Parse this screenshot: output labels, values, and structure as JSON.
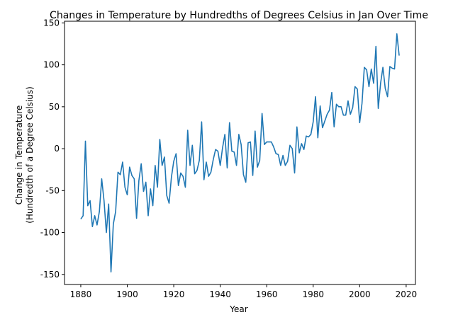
{
  "chart_data": {
    "type": "line",
    "title": "Changes in Temperature by Hundredths of Degrees Celsius in Jan Over Time",
    "xlabel": "Year",
    "ylabel_lines": [
      "Change in Temperature",
      "(Hundredth of a Degree Celsius)"
    ],
    "xlim": [
      1873,
      2024
    ],
    "ylim": [
      -162,
      152
    ],
    "x_ticks": [
      1880,
      1900,
      1920,
      1940,
      1960,
      1980,
      2000,
      2020
    ],
    "y_ticks": [
      -150,
      -100,
      -50,
      0,
      50,
      100,
      150
    ],
    "grid": false,
    "legend": "none",
    "line_color": "#1f77b4",
    "series": [
      {
        "x": [
          1880,
          1881,
          1882,
          1883,
          1884,
          1885,
          1886,
          1887,
          1888,
          1889,
          1890,
          1891,
          1892,
          1893,
          1894,
          1895,
          1896,
          1897,
          1898,
          1899,
          1900,
          1901,
          1902,
          1903,
          1904,
          1905,
          1906,
          1907,
          1908,
          1909,
          1910,
          1911,
          1912,
          1913,
          1914,
          1915,
          1916,
          1917,
          1918,
          1919,
          1920,
          1921,
          1922,
          1923,
          1924,
          1925,
          1926,
          1927,
          1928,
          1929,
          1930,
          1931,
          1932,
          1933,
          1934,
          1935,
          1936,
          1937,
          1938,
          1939,
          1940,
          1941,
          1942,
          1943,
          1944,
          1945,
          1946,
          1947,
          1948,
          1949,
          1950,
          1951,
          1952,
          1953,
          1954,
          1955,
          1956,
          1957,
          1958,
          1959,
          1960,
          1961,
          1962,
          1963,
          1964,
          1965,
          1966,
          1967,
          1968,
          1969,
          1970,
          1971,
          1972,
          1973,
          1974,
          1975,
          1976,
          1977,
          1978,
          1979,
          1980,
          1981,
          1982,
          1983,
          1984,
          1985,
          1986,
          1987,
          1988,
          1989,
          1990,
          1991,
          1992,
          1993,
          1994,
          1995,
          1996,
          1997,
          1998,
          1999,
          2000,
          2001,
          2002,
          2003,
          2004,
          2005,
          2006,
          2007,
          2008,
          2009,
          2010,
          2011,
          2012,
          2013,
          2014,
          2015,
          2016,
          2017
        ],
        "y": [
          -84,
          -80,
          9,
          -68,
          -62,
          -93,
          -80,
          -91,
          -75,
          -36,
          -62,
          -100,
          -66,
          -147,
          -90,
          -75,
          -28,
          -31,
          -16,
          -46,
          -55,
          -22,
          -32,
          -36,
          -83,
          -38,
          -18,
          -51,
          -40,
          -80,
          -48,
          -68,
          -20,
          -46,
          11,
          -20,
          -10,
          -56,
          -65,
          -34,
          -15,
          -6,
          -44,
          -29,
          -33,
          -46,
          22,
          -20,
          4,
          -30,
          -26,
          -14,
          32,
          -37,
          -16,
          -33,
          -28,
          -13,
          -1,
          -3,
          -20,
          1,
          17,
          -23,
          31,
          -3,
          -4,
          -20,
          17,
          5,
          -31,
          -40,
          7,
          8,
          -32,
          21,
          -22,
          -14,
          42,
          5,
          8,
          8,
          8,
          2,
          -6,
          -7,
          -20,
          -8,
          -20,
          -15,
          4,
          0,
          -29,
          26,
          -5,
          6,
          -1,
          15,
          14,
          17,
          32,
          62,
          13,
          51,
          25,
          33,
          41,
          46,
          67,
          26,
          53,
          50,
          50,
          40,
          40,
          57,
          41,
          49,
          74,
          71,
          31,
          54,
          97,
          94,
          74,
          95,
          78,
          122,
          48,
          78,
          97,
          72,
          62,
          98,
          96,
          95,
          137,
          111
        ]
      }
    ]
  }
}
